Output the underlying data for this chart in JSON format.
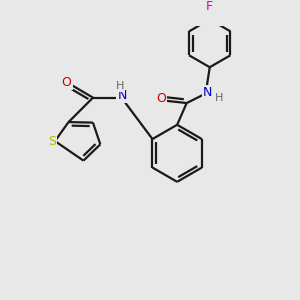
{
  "background_color": "#e8e8e8",
  "bond_color": "#1a1a1a",
  "S_color": "#b8b800",
  "N_color": "#0000cc",
  "O_color": "#cc0000",
  "F_color": "#cc00cc",
  "H_color": "#666666",
  "line_width": 1.6,
  "figsize": [
    3.0,
    3.0
  ],
  "dpi": 100,
  "xlim": [
    0,
    10
  ],
  "ylim": [
    0,
    10
  ]
}
